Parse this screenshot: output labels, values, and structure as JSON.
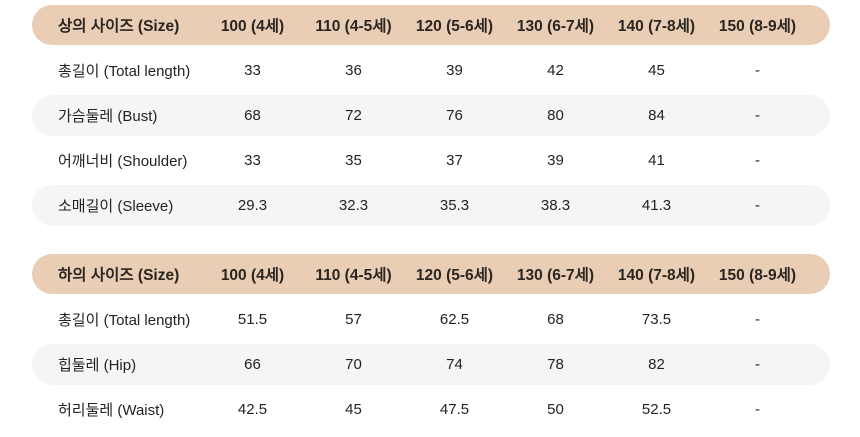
{
  "colors": {
    "header_bg": "#e9cdb5",
    "alt_row_bg": "#f5f5f6",
    "text": "#232323",
    "page_bg": "#ffffff"
  },
  "tables": [
    {
      "header": {
        "label": "상의 사이즈 (Size)",
        "columns": [
          "100 (4세)",
          "110 (4-5세)",
          "120 (5-6세)",
          "130 (6-7세)",
          "140 (7-8세)",
          "150 (8-9세)"
        ]
      },
      "rows": [
        {
          "label": "총길이 (Total length)",
          "values": [
            "33",
            "36",
            "39",
            "42",
            "45",
            "-"
          ]
        },
        {
          "label": "가슴둘레 (Bust)",
          "values": [
            "68",
            "72",
            "76",
            "80",
            "84",
            "-"
          ]
        },
        {
          "label": "어깨너비 (Shoulder)",
          "values": [
            "33",
            "35",
            "37",
            "39",
            "41",
            "-"
          ]
        },
        {
          "label": "소매길이 (Sleeve)",
          "values": [
            "29.3",
            "32.3",
            "35.3",
            "38.3",
            "41.3",
            "-"
          ]
        }
      ]
    },
    {
      "header": {
        "label": "하의 사이즈 (Size)",
        "columns": [
          "100 (4세)",
          "110 (4-5세)",
          "120 (5-6세)",
          "130 (6-7세)",
          "140 (7-8세)",
          "150 (8-9세)"
        ]
      },
      "rows": [
        {
          "label": "총길이 (Total length)",
          "values": [
            "51.5",
            "57",
            "62.5",
            "68",
            "73.5",
            "-"
          ]
        },
        {
          "label": "힙둘레 (Hip)",
          "values": [
            "66",
            "70",
            "74",
            "78",
            "82",
            "-"
          ]
        },
        {
          "label": "허리둘레 (Waist)",
          "values": [
            "42.5",
            "45",
            "47.5",
            "50",
            "52.5",
            "-"
          ]
        }
      ]
    }
  ],
  "chart_data": [
    {
      "type": "table",
      "title": "상의 사이즈 (Size)",
      "categories": [
        "100 (4세)",
        "110 (4-5세)",
        "120 (5-6세)",
        "130 (6-7세)",
        "140 (7-8세)",
        "150 (8-9세)"
      ],
      "series": [
        {
          "name": "총길이 (Total length)",
          "values": [
            33,
            36,
            39,
            42,
            45,
            null
          ]
        },
        {
          "name": "가슴둘레 (Bust)",
          "values": [
            68,
            72,
            76,
            80,
            84,
            null
          ]
        },
        {
          "name": "어깨너비 (Shoulder)",
          "values": [
            33,
            35,
            37,
            39,
            41,
            null
          ]
        },
        {
          "name": "소매길이 (Sleeve)",
          "values": [
            29.3,
            32.3,
            35.3,
            38.3,
            41.3,
            null
          ]
        }
      ]
    },
    {
      "type": "table",
      "title": "하의 사이즈 (Size)",
      "categories": [
        "100 (4세)",
        "110 (4-5세)",
        "120 (5-6세)",
        "130 (6-7세)",
        "140 (7-8세)",
        "150 (8-9세)"
      ],
      "series": [
        {
          "name": "총길이 (Total length)",
          "values": [
            51.5,
            57,
            62.5,
            68,
            73.5,
            null
          ]
        },
        {
          "name": "힙둘레 (Hip)",
          "values": [
            66,
            70,
            74,
            78,
            82,
            null
          ]
        },
        {
          "name": "허리둘레 (Waist)",
          "values": [
            42.5,
            45,
            47.5,
            50,
            52.5,
            null
          ]
        }
      ]
    }
  ]
}
